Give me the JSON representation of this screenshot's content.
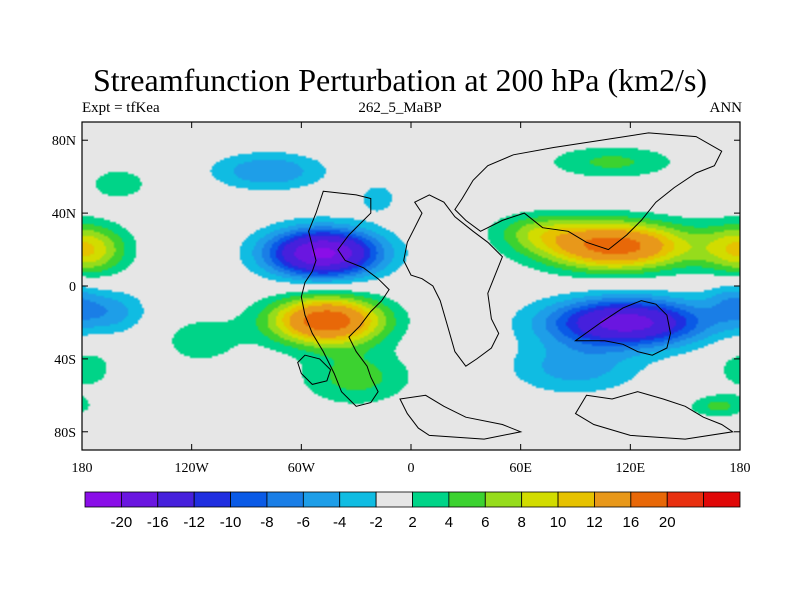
{
  "title": "Streamfunction Perturbation at 200 hPa (km2/s)",
  "left_string": "Expt = tfKea",
  "center_string": "262_5_MaBP",
  "right_string": "ANN",
  "map": {
    "projection": "cylindrical equidistant",
    "lon_range": [
      -180,
      180
    ],
    "lat_range": [
      -90,
      90
    ],
    "x_ticks": [
      {
        "lon": -180,
        "label": "180"
      },
      {
        "lon": -120,
        "label": "120W"
      },
      {
        "lon": -60,
        "label": "60W"
      },
      {
        "lon": 0,
        "label": "0"
      },
      {
        "lon": 60,
        "label": "60E"
      },
      {
        "lon": 120,
        "label": "120E"
      },
      {
        "lon": 180,
        "label": "180"
      }
    ],
    "y_ticks": [
      {
        "lat": 80,
        "label": "80N"
      },
      {
        "lat": 40,
        "label": "40N"
      },
      {
        "lat": 0,
        "label": "0"
      },
      {
        "lat": -40,
        "label": "40S"
      },
      {
        "lat": -80,
        "label": "80S"
      }
    ],
    "background_color": "#e6e6e6"
  },
  "colorbar": {
    "colors": [
      "#8a0ee8",
      "#6a16e0",
      "#4620dc",
      "#1f2ee0",
      "#0a5ae6",
      "#1a7ee6",
      "#1e9ee8",
      "#10bce2",
      "#e6e6e6",
      "#00d488",
      "#3cd230",
      "#96dc1c",
      "#d2dc00",
      "#e6c200",
      "#e8981a",
      "#e86808",
      "#e83010",
      "#e00808"
    ],
    "labels": [
      "-20",
      "-16",
      "-12",
      "-10",
      "-8",
      "-6",
      "-4",
      "-2",
      "2",
      "4",
      "6",
      "8",
      "10",
      "12",
      "16",
      "20"
    ]
  },
  "chart_data": {
    "type": "heatmap",
    "title": "Streamfunction Perturbation at 200 hPa (km2/s)",
    "variable_unit": "km2/s",
    "contour_levels": [
      -20,
      -16,
      -12,
      -10,
      -8,
      -6,
      -4,
      -2,
      2,
      4,
      6,
      8,
      10,
      12,
      16,
      20
    ],
    "x_range": [
      -180,
      180
    ],
    "y_range": [
      -90,
      90
    ],
    "features": [
      {
        "lon": -48,
        "lat": 18,
        "peak": -21,
        "rlon": 30,
        "rlat": 13
      },
      {
        "lon": -78,
        "lat": 63,
        "peak": -6,
        "rlon": 30,
        "rlat": 10
      },
      {
        "lon": -18,
        "lat": 48,
        "peak": -3.5,
        "rlon": 10,
        "rlat": 8
      },
      {
        "lon": -46,
        "lat": -19,
        "peak": 19,
        "rlon": 30,
        "rlat": 13
      },
      {
        "lon": -30,
        "lat": -50,
        "peak": 5,
        "rlon": 30,
        "rlat": 15
      },
      {
        "lon": -115,
        "lat": -30,
        "peak": 3,
        "rlon": 25,
        "rlat": 15
      },
      {
        "lon": -178,
        "lat": 20,
        "peak": 10,
        "rlon": 22,
        "rlat": 14
      },
      {
        "lon": -160,
        "lat": 56,
        "peak": 4,
        "rlon": 15,
        "rlat": 8
      },
      {
        "lon": 112,
        "lat": 22,
        "peak": 18,
        "rlon": 40,
        "rlat": 13
      },
      {
        "lon": 70,
        "lat": 30,
        "peak": 5,
        "rlon": 25,
        "rlat": 10
      },
      {
        "lon": 110,
        "lat": 68,
        "peak": 4.5,
        "rlon": 35,
        "rlat": 9
      },
      {
        "lon": 118,
        "lat": -20,
        "peak": -18,
        "rlon": 42,
        "rlat": 13
      },
      {
        "lon": 90,
        "lat": -45,
        "peak": -5,
        "rlon": 35,
        "rlat": 14
      },
      {
        "lon": 168,
        "lat": -66,
        "peak": 4.5,
        "rlon": 16,
        "rlat": 6
      },
      {
        "lon": -165,
        "lat": -14,
        "peak": -5,
        "rlon": 20,
        "rlat": 12
      },
      {
        "lon": -178,
        "lat": -45,
        "peak": 3,
        "rlon": 18,
        "rlat": 14
      },
      {
        "lon": 175,
        "lat": -8,
        "peak": -4,
        "rlon": 14,
        "rlat": 12
      }
    ],
    "coastlines": [
      [
        [
          -48,
          52
        ],
        [
          -30,
          50
        ],
        [
          -22,
          48
        ],
        [
          -22,
          40
        ],
        [
          -28,
          34
        ],
        [
          -34,
          28
        ],
        [
          -40,
          20
        ],
        [
          -36,
          14
        ],
        [
          -26,
          10
        ],
        [
          -18,
          4
        ],
        [
          -12,
          -2
        ],
        [
          -16,
          -8
        ],
        [
          -22,
          -14
        ],
        [
          -28,
          -22
        ],
        [
          -34,
          -28
        ],
        [
          -30,
          -36
        ],
        [
          -24,
          -44
        ],
        [
          -22,
          -50
        ],
        [
          -18,
          -58
        ],
        [
          -22,
          -64
        ],
        [
          -30,
          -66
        ],
        [
          -38,
          -58
        ],
        [
          -42,
          -48
        ],
        [
          -48,
          -36
        ],
        [
          -54,
          -26
        ],
        [
          -58,
          -16
        ],
        [
          -60,
          -6
        ],
        [
          -58,
          2
        ],
        [
          -54,
          8
        ],
        [
          -52,
          14
        ],
        [
          -54,
          22
        ],
        [
          -56,
          30
        ],
        [
          -52,
          40
        ],
        [
          -48,
          52
        ]
      ],
      [
        [
          2,
          46
        ],
        [
          10,
          50
        ],
        [
          18,
          46
        ],
        [
          24,
          38
        ],
        [
          34,
          30
        ],
        [
          42,
          24
        ],
        [
          50,
          16
        ],
        [
          46,
          6
        ],
        [
          42,
          -4
        ],
        [
          44,
          -18
        ],
        [
          48,
          -26
        ],
        [
          44,
          -34
        ],
        [
          36,
          -40
        ],
        [
          30,
          -44
        ],
        [
          24,
          -36
        ],
        [
          20,
          -22
        ],
        [
          16,
          -8
        ],
        [
          12,
          0
        ],
        [
          6,
          4
        ],
        [
          0,
          6
        ],
        [
          -4,
          14
        ],
        [
          -2,
          24
        ],
        [
          2,
          32
        ],
        [
          6,
          40
        ],
        [
          2,
          46
        ]
      ],
      [
        [
          38,
          30
        ],
        [
          50,
          36
        ],
        [
          62,
          40
        ],
        [
          72,
          32
        ],
        [
          86,
          30
        ],
        [
          96,
          24
        ],
        [
          108,
          20
        ],
        [
          118,
          28
        ],
        [
          126,
          36
        ],
        [
          134,
          46
        ],
        [
          144,
          54
        ],
        [
          156,
          62
        ],
        [
          166,
          66
        ],
        [
          170,
          74
        ],
        [
          156,
          82
        ],
        [
          130,
          84
        ],
        [
          104,
          80
        ],
        [
          78,
          76
        ],
        [
          56,
          72
        ],
        [
          42,
          66
        ],
        [
          34,
          58
        ],
        [
          28,
          48
        ],
        [
          24,
          42
        ],
        [
          30,
          36
        ],
        [
          38,
          30
        ]
      ],
      [
        [
          -6,
          -62
        ],
        [
          -2,
          -70
        ],
        [
          4,
          -78
        ],
        [
          10,
          -82
        ],
        [
          40,
          -84
        ],
        [
          60,
          -80
        ],
        [
          50,
          -76
        ],
        [
          30,
          -72
        ],
        [
          18,
          -66
        ],
        [
          8,
          -60
        ],
        [
          -6,
          -62
        ]
      ],
      [
        [
          90,
          -30
        ],
        [
          104,
          -20
        ],
        [
          116,
          -12
        ],
        [
          126,
          -8
        ],
        [
          134,
          -10
        ],
        [
          140,
          -16
        ],
        [
          142,
          -26
        ],
        [
          140,
          -34
        ],
        [
          132,
          -38
        ],
        [
          124,
          -36
        ],
        [
          116,
          -32
        ],
        [
          106,
          -30
        ],
        [
          96,
          -30
        ],
        [
          90,
          -30
        ]
      ],
      [
        [
          -58,
          -38
        ],
        [
          -50,
          -40
        ],
        [
          -44,
          -46
        ],
        [
          -46,
          -52
        ],
        [
          -54,
          -54
        ],
        [
          -60,
          -48
        ],
        [
          -62,
          -42
        ],
        [
          -58,
          -38
        ]
      ],
      [
        [
          96,
          -60
        ],
        [
          110,
          -62
        ],
        [
          124,
          -58
        ],
        [
          138,
          -62
        ],
        [
          150,
          -66
        ],
        [
          160,
          -72
        ],
        [
          170,
          -76
        ],
        [
          176,
          -80
        ],
        [
          150,
          -84
        ],
        [
          120,
          -82
        ],
        [
          100,
          -76
        ],
        [
          90,
          -70
        ],
        [
          96,
          -60
        ]
      ]
    ]
  }
}
